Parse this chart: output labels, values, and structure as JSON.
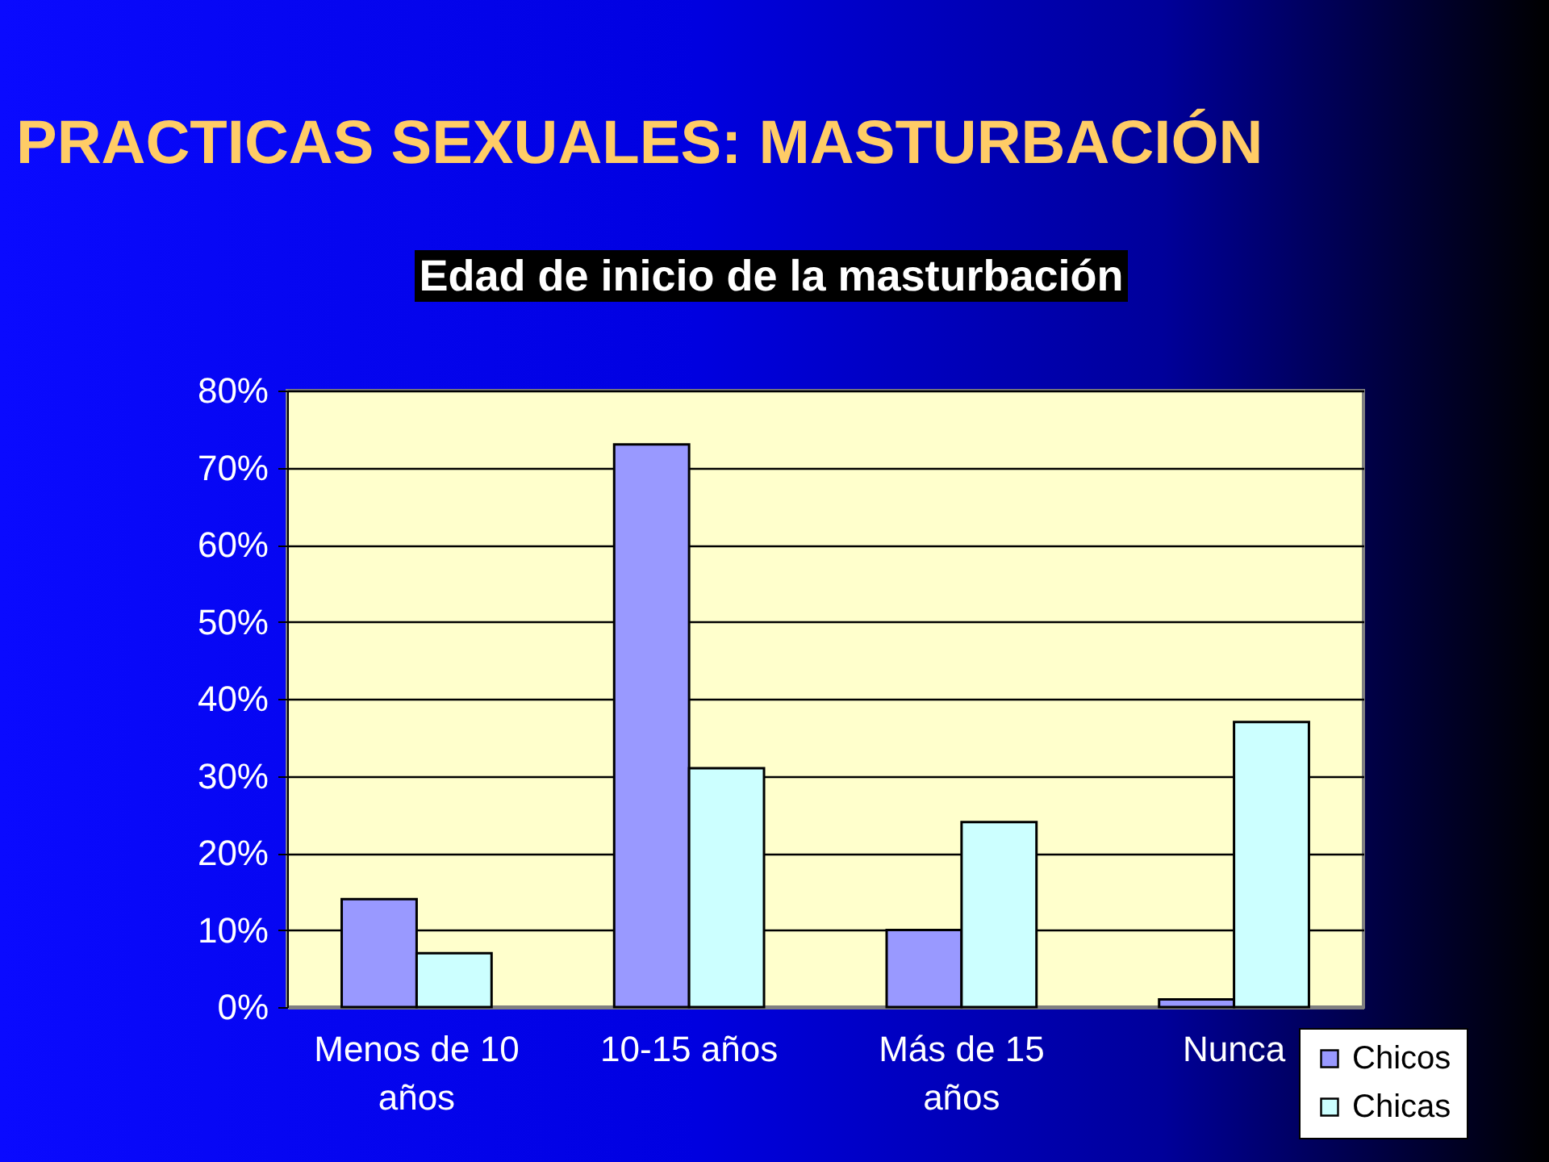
{
  "chart_data": {
    "type": "bar",
    "title": "PRACTICAS SEXUALES: MASTURBACIÓN",
    "subtitle": "Edad de inicio de la masturbación",
    "categories": [
      "Menos de 10 años",
      "10-15 años",
      "Más de 15 años",
      "Nunca"
    ],
    "series": [
      {
        "name": "Chicos",
        "color": "#9999ff",
        "values": [
          14,
          73,
          10,
          1
        ]
      },
      {
        "name": "Chicas",
        "color": "#ccffff",
        "values": [
          7,
          31,
          24,
          37
        ]
      }
    ],
    "ylim": [
      0,
      80
    ],
    "yticks": [
      {
        "value": 0,
        "label": "0%"
      },
      {
        "value": 10,
        "label": "10%"
      },
      {
        "value": 20,
        "label": "20%"
      },
      {
        "value": 30,
        "label": "30%"
      },
      {
        "value": 40,
        "label": "40%"
      },
      {
        "value": 50,
        "label": "50%"
      },
      {
        "value": 60,
        "label": "60%"
      },
      {
        "value": 70,
        "label": "70%"
      },
      {
        "value": 80,
        "label": "80%"
      }
    ],
    "grid": "y",
    "legend": "bottom right"
  }
}
